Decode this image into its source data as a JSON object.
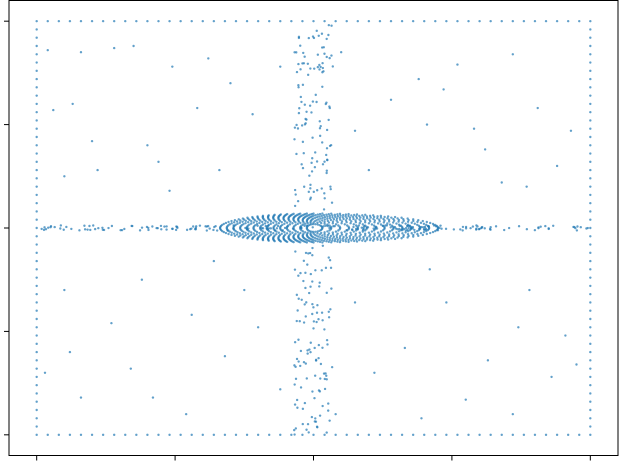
{
  "chart_data": {
    "type": "scatter",
    "title": "",
    "xlabel": "",
    "ylabel": "",
    "xlim": [
      -1.1,
      1.1
    ],
    "ylim": [
      -1.1,
      1.1
    ],
    "grid": false,
    "legend": "none",
    "tick_labels_visible": false,
    "x_ticks": [
      -1.0,
      -0.5,
      0.0,
      0.5,
      1.0
    ],
    "y_ticks": [
      -1.0,
      -0.5,
      0.0,
      0.5,
      1.0
    ],
    "marker_color": "#1f77b4",
    "marker_alpha": 0.7,
    "structure": {
      "border_lattice": {
        "x_min": -1.0,
        "x_max": 1.0,
        "y_min": -1.0,
        "y_max": 1.0,
        "step": 0.04
      },
      "horizontal_band": {
        "y": 0.0,
        "x_range": [
          -1.0,
          1.0
        ]
      },
      "vertical_band": {
        "x": 0.0,
        "y_range": [
          -1.0,
          1.0
        ]
      },
      "ring_cluster": {
        "center": [
          0.0,
          0.0
        ],
        "x_radius_max": 0.45,
        "y_radius_max": 0.07
      }
    },
    "series": [
      {
        "points": [
          [
            -0.72,
            0.87
          ],
          [
            -0.65,
            0.88
          ],
          [
            -0.84,
            0.85
          ],
          [
            -0.51,
            0.78
          ],
          [
            -0.38,
            0.82
          ],
          [
            0.38,
            0.72
          ],
          [
            0.52,
            0.79
          ],
          [
            0.72,
            0.84
          ],
          [
            0.81,
            0.58
          ],
          [
            -0.87,
            0.6
          ],
          [
            -0.8,
            0.42
          ],
          [
            -0.94,
            0.57
          ],
          [
            -0.6,
            0.4
          ],
          [
            -0.78,
            0.28
          ],
          [
            -0.56,
            0.32
          ],
          [
            -0.9,
            0.25
          ],
          [
            -0.3,
            0.7
          ],
          [
            -0.22,
            0.55
          ],
          [
            0.28,
            0.62
          ],
          [
            0.41,
            0.5
          ],
          [
            0.62,
            0.38
          ],
          [
            0.68,
            0.22
          ],
          [
            0.88,
            0.3
          ],
          [
            0.93,
            0.47
          ],
          [
            0.58,
            0.48
          ],
          [
            -0.42,
            0.58
          ],
          [
            -0.52,
            0.18
          ],
          [
            -0.34,
            0.28
          ],
          [
            0.15,
            0.47
          ],
          [
            0.2,
            0.28
          ],
          [
            0.47,
            0.67
          ],
          [
            0.77,
            0.2
          ],
          [
            -0.12,
            0.78
          ],
          [
            0.1,
            0.85
          ],
          [
            -0.96,
            0.86
          ],
          [
            -0.73,
            -0.46
          ],
          [
            -0.88,
            -0.6
          ],
          [
            -0.66,
            -0.68
          ],
          [
            -0.44,
            -0.42
          ],
          [
            -0.58,
            -0.82
          ],
          [
            -0.32,
            -0.62
          ],
          [
            -0.2,
            -0.48
          ],
          [
            -0.84,
            -0.82
          ],
          [
            0.33,
            -0.58
          ],
          [
            0.48,
            -0.36
          ],
          [
            0.63,
            -0.64
          ],
          [
            0.74,
            -0.48
          ],
          [
            0.86,
            -0.72
          ],
          [
            0.91,
            -0.52
          ],
          [
            0.55,
            -0.83
          ],
          [
            0.22,
            -0.7
          ],
          [
            -0.9,
            -0.3
          ],
          [
            -0.62,
            -0.25
          ],
          [
            -0.12,
            -0.78
          ],
          [
            0.15,
            -0.36
          ],
          [
            -0.46,
            -0.9
          ],
          [
            0.39,
            -0.92
          ],
          [
            0.72,
            -0.9
          ],
          [
            -0.36,
            -0.16
          ],
          [
            0.42,
            -0.2
          ],
          [
            0.78,
            -0.3
          ],
          [
            0.95,
            -0.66
          ],
          [
            -0.97,
            -0.7
          ],
          [
            -0.25,
            -0.3
          ],
          [
            0.08,
            -0.9
          ]
        ]
      }
    ]
  }
}
